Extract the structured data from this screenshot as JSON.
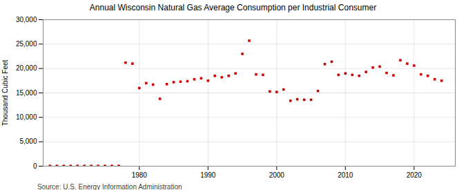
{
  "chart_data": {
    "type": "scatter",
    "title": "Annual Wisconsin Natural Gas Average Consumption per Industrial Consumer",
    "ylabel": "Thousand Cubic Feet",
    "source": "Source: U.S. Energy Information Administration",
    "x": [
      1967,
      1968,
      1969,
      1970,
      1971,
      1972,
      1973,
      1974,
      1975,
      1976,
      1977,
      1978,
      1979,
      1980,
      1981,
      1982,
      1983,
      1984,
      1985,
      1986,
      1987,
      1988,
      1989,
      1990,
      1991,
      1992,
      1993,
      1994,
      1995,
      1996,
      1997,
      1998,
      1999,
      2000,
      2001,
      2002,
      2003,
      2004,
      2005,
      2006,
      2007,
      2008,
      2009,
      2010,
      2011,
      2012,
      2013,
      2014,
      2015,
      2016,
      2017,
      2018,
      2019,
      2020,
      2021,
      2022,
      2023,
      2024
    ],
    "values": [
      50,
      50,
      50,
      50,
      50,
      50,
      50,
      50,
      50,
      50,
      50,
      21200,
      21000,
      16000,
      17000,
      16700,
      13800,
      16800,
      17200,
      17300,
      17400,
      17800,
      18000,
      17500,
      18500,
      18200,
      18500,
      19000,
      23000,
      25700,
      18800,
      18700,
      15300,
      15200,
      15700,
      13400,
      13700,
      13600,
      13600,
      15400,
      20900,
      21400,
      18700,
      19000,
      18700,
      18500,
      19300,
      20200,
      20400,
      19100,
      18600,
      21700,
      21000,
      20600,
      18800,
      18500,
      17800,
      17500
    ],
    "color": "#cc0000",
    "marker": "square",
    "xlim": [
      1966,
      2026
    ],
    "xticks": [
      1980,
      1990,
      2000,
      2010,
      2020
    ],
    "ylim": [
      0,
      30000
    ],
    "yticks": [
      0,
      {
        "value": 5000,
        "label": "5,000"
      },
      {
        "value": 10000,
        "label": "10,000"
      },
      {
        "value": 15000,
        "label": "15,000"
      },
      {
        "value": 20000,
        "label": "20,000"
      },
      {
        "value": 25000,
        "label": "25,000"
      },
      {
        "value": 30000,
        "label": "30,000"
      }
    ],
    "grid": true
  }
}
